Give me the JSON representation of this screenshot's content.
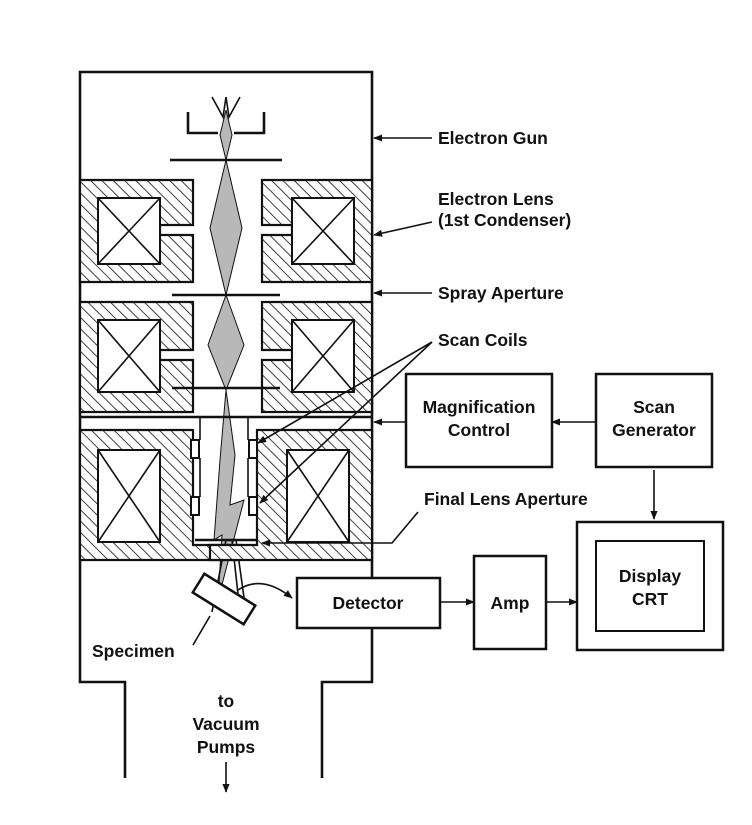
{
  "labels": {
    "electron_gun": "Electron Gun",
    "electron_lens": "Electron Lens",
    "first_condenser": "(1st Condenser)",
    "spray_aperture": "Spray Aperture",
    "scan_coils": "Scan Coils",
    "final_lens_aperture": "Final Lens Aperture",
    "specimen": "Specimen",
    "to": "to",
    "vacuum": "Vacuum",
    "pumps": "Pumps"
  },
  "boxes": {
    "magnification_control": [
      "Magnification",
      "Control"
    ],
    "scan_generator": [
      "Scan",
      "Generator"
    ],
    "detector": "Detector",
    "amp": "Amp",
    "display_crt": [
      "Display",
      "CRT"
    ]
  }
}
